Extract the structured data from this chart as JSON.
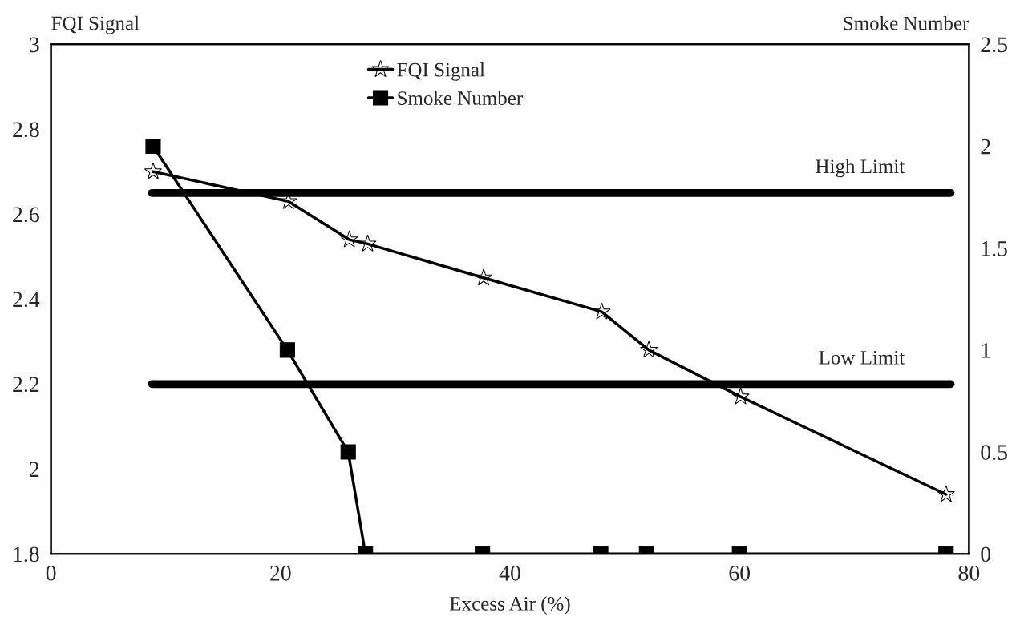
{
  "chart_data": {
    "type": "line",
    "xlabel": "Excess Air (%)",
    "ylabel": "FQI Signal",
    "y2label": "Smoke Number",
    "xlim": [
      0,
      80
    ],
    "xticks": [
      0,
      20,
      40,
      60,
      80
    ],
    "ylim": [
      1.8,
      3
    ],
    "yticks": [
      1.8,
      2,
      2.2,
      2.4,
      2.6,
      2.8,
      3
    ],
    "y2lim": [
      0,
      2.5
    ],
    "y2ticks": [
      0,
      0.5,
      1,
      1.5,
      2,
      2.5
    ],
    "grid": false,
    "legend": "top",
    "line_style": "solid",
    "series": [
      {
        "name": "FQI Signal",
        "color": "#000000",
        "marker": "star",
        "x": [
          8.9,
          20.7,
          26.0,
          27.6,
          37.7,
          48.0,
          52.1,
          60.1,
          78.0
        ],
        "values": [
          2.7,
          2.63,
          2.54,
          2.53,
          2.45,
          2.37,
          2.28,
          2.17,
          1.94
        ]
      },
      {
        "name": "Smoke Number",
        "color": "#000000",
        "marker": "square",
        "axis": "y2",
        "x": [
          8.9,
          20.6,
          25.9,
          27.4,
          37.6,
          47.9,
          51.9,
          60.0,
          78.0
        ],
        "values": [
          2.0,
          1.0,
          0.5,
          0,
          0,
          0,
          0,
          0,
          0
        ]
      }
    ],
    "ref_lines": [
      {
        "axis": "y",
        "value": 2.65,
        "label": "High Limit",
        "color": "#000000"
      },
      {
        "axis": "y",
        "value": 2.2,
        "label": "Low Limit",
        "color": "#000000"
      }
    ]
  }
}
